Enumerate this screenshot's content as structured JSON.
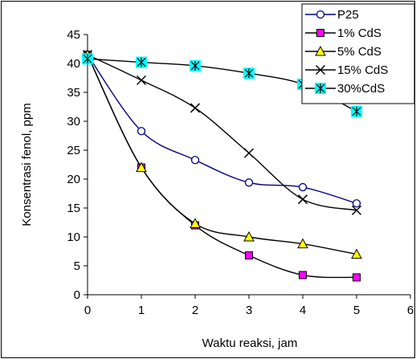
{
  "chart_data": {
    "type": "line",
    "xlabel": "Waktu reaksi, jam",
    "ylabel": "Konsentrasi fenol, ppm",
    "xlim": [
      0,
      6
    ],
    "ylim": [
      0,
      45
    ],
    "x_ticks": [
      0,
      1,
      2,
      3,
      4,
      5,
      6
    ],
    "y_ticks": [
      0,
      5,
      10,
      15,
      20,
      25,
      30,
      35,
      40,
      45
    ],
    "grid": false,
    "legend_position": "top-right",
    "x": [
      0,
      1,
      2,
      3,
      4,
      5
    ],
    "series": [
      {
        "name": "P25",
        "values": [
          41.5,
          28.3,
          23.3,
          19.4,
          18.6,
          15.8
        ],
        "color": "#000080",
        "marker": "circle"
      },
      {
        "name": "1% CdS",
        "values": [
          41.5,
          22.0,
          12.0,
          6.8,
          3.4,
          3.0
        ],
        "color": "#000000",
        "marker_fill": "#ff00ff",
        "marker": "square"
      },
      {
        "name": "5% CdS",
        "values": [
          41.5,
          22.0,
          12.3,
          10.0,
          8.8,
          7.0
        ],
        "color": "#000000",
        "marker_fill": "#ffff00",
        "marker": "triangle"
      },
      {
        "name": "15% CdS",
        "values": [
          41.5,
          37.1,
          32.3,
          24.5,
          16.5,
          14.6
        ],
        "color": "#000000",
        "marker": "x"
      },
      {
        "name": "30%CdS",
        "values": [
          40.8,
          40.2,
          39.6,
          38.3,
          36.4,
          31.7
        ],
        "color": "#000000",
        "marker_fill": "#00ffff",
        "marker": "star-square"
      }
    ]
  }
}
